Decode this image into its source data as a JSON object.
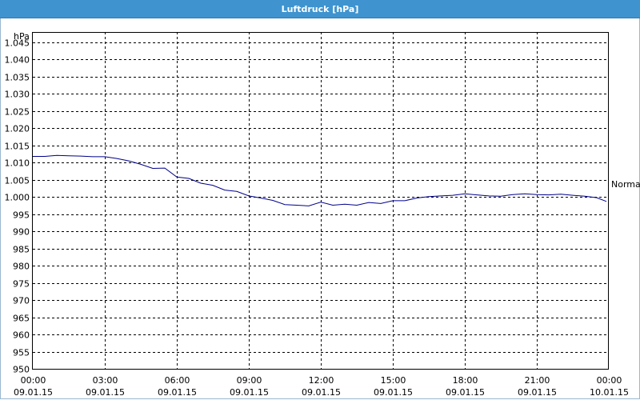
{
  "window": {
    "title": "Luftdruck [hPa]"
  },
  "colors": {
    "titlebar": "#3f94cf",
    "series": "#00008b",
    "grid": "#000000"
  },
  "chart_data": {
    "type": "line",
    "title": "Luftdruck [hPa]",
    "ylabel": "hPa",
    "xlabel": "",
    "ylim": [
      950,
      1048
    ],
    "xlim": [
      0,
      24
    ],
    "grid": true,
    "y_ticks": [
      "950",
      "955",
      "960",
      "965",
      "970",
      "975",
      "980",
      "985",
      "990",
      "995",
      "1.000",
      "1.005",
      "1.010",
      "1.015",
      "1.020",
      "1.025",
      "1.030",
      "1.035",
      "1.040",
      "1.045"
    ],
    "y_tick_values": [
      950,
      955,
      960,
      965,
      970,
      975,
      980,
      985,
      990,
      995,
      1000,
      1005,
      1010,
      1015,
      1020,
      1025,
      1030,
      1035,
      1040,
      1045
    ],
    "x_ticks": [
      {
        "time": "00:00",
        "date": "09.01.15"
      },
      {
        "time": "03:00",
        "date": "09.01.15"
      },
      {
        "time": "06:00",
        "date": "09.01.15"
      },
      {
        "time": "09:00",
        "date": "09.01.15"
      },
      {
        "time": "12:00",
        "date": "09.01.15"
      },
      {
        "time": "15:00",
        "date": "09.01.15"
      },
      {
        "time": "18:00",
        "date": "09.01.15"
      },
      {
        "time": "21:00",
        "date": "09.01.15"
      },
      {
        "time": "00:00",
        "date": "10.01.15"
      }
    ],
    "x_tick_hours": [
      0,
      3,
      6,
      9,
      12,
      15,
      18,
      21,
      24
    ],
    "series": [
      {
        "name": "Normal",
        "color": "#00008b",
        "x": [
          0,
          0.5,
          1,
          1.5,
          2,
          2.5,
          3,
          3.5,
          4,
          4.5,
          5,
          5.5,
          6,
          6.5,
          7,
          7.5,
          8,
          8.5,
          9,
          9.5,
          10,
          10.5,
          11,
          11.5,
          12,
          12.5,
          13,
          13.5,
          14,
          14.5,
          15,
          15.5,
          16,
          16.5,
          17,
          17.5,
          18,
          18.5,
          19,
          19.5,
          20,
          20.5,
          21,
          21.5,
          22,
          22.5,
          23,
          23.5,
          23.9
        ],
        "y": [
          1011.8,
          1011.8,
          1012.1,
          1012.0,
          1011.9,
          1011.7,
          1011.7,
          1011.2,
          1010.5,
          1009.5,
          1008.3,
          1008.4,
          1005.8,
          1005.4,
          1004.0,
          1003.4,
          1002.0,
          1001.6,
          1000.3,
          999.7,
          999.0,
          997.8,
          997.6,
          997.4,
          998.5,
          997.6,
          997.9,
          997.6,
          998.4,
          998.1,
          998.9,
          998.9,
          999.7,
          1000.1,
          1000.3,
          1000.5,
          1000.9,
          1000.6,
          1000.3,
          1000.2,
          1000.7,
          1000.9,
          1000.7,
          1000.6,
          1000.8,
          1000.5,
          1000.2,
          999.8,
          998.7
        ]
      }
    ]
  }
}
